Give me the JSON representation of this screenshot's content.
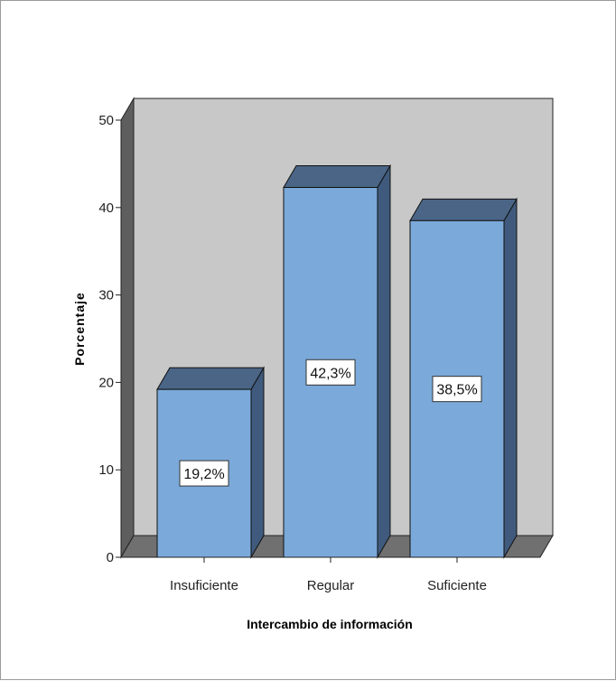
{
  "chart_data": {
    "type": "bar",
    "categories": [
      "Insuficiente",
      "Regular",
      "Suficiente"
    ],
    "values": [
      19.2,
      42.3,
      38.5
    ],
    "data_labels": [
      "19,2%",
      "42,3%",
      "38,5%"
    ],
    "xlabel": "Intercambio de información",
    "ylabel": "Porcentaje",
    "ylim": [
      0,
      50
    ],
    "yticks": [
      0,
      10,
      20,
      30,
      40,
      50
    ],
    "style": "3d",
    "grid": false,
    "colors": {
      "bar_front": "#7BA9DA",
      "bar_top": "#4A6586",
      "bar_side": "#3F5A7C",
      "back_wall": "#C8C8C8",
      "floor": "#707070",
      "left_wall": "#5E5E5E"
    }
  }
}
